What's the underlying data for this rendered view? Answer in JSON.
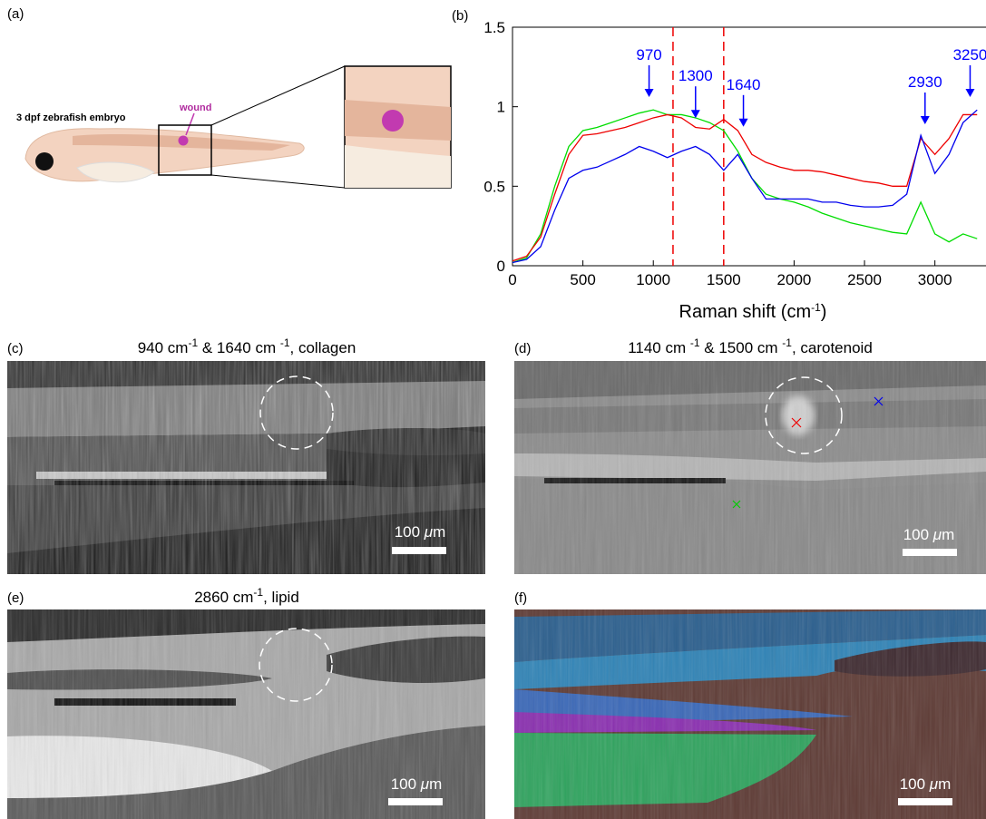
{
  "panels": {
    "a": {
      "label": "(a)",
      "embryo_label": "3 dpf zebrafish embryo",
      "wound_label": "wound"
    },
    "c": {
      "label": "(c)",
      "title": [
        "940 cm",
        "-1",
        " & 1640 cm ",
        "-1",
        ", collagen"
      ],
      "scale_bar": [
        "100 ",
        "μ",
        "m"
      ]
    },
    "d": {
      "label": "(d)",
      "title": [
        "1140 cm ",
        "-1",
        " & 1500 cm ",
        "-1",
        ", carotenoid"
      ],
      "scale_bar": [
        "100 ",
        "μ",
        "m"
      ]
    },
    "e": {
      "label": "(e)",
      "title": [
        "2860 cm",
        "-1",
        ", lipid"
      ],
      "scale_bar": [
        "100 ",
        "μ",
        "m"
      ]
    },
    "f": {
      "label": "(f)",
      "scale_bar": [
        "100 ",
        "μ",
        "m"
      ]
    }
  },
  "chart_data": {
    "type": "line",
    "panel_label": "(b)",
    "x_label": [
      "Raman shift (cm",
      "-1",
      ")"
    ],
    "x": [
      0,
      100,
      200,
      300,
      400,
      500,
      600,
      700,
      800,
      900,
      1000,
      1100,
      1200,
      1300,
      1400,
      1500,
      1600,
      1700,
      1800,
      1900,
      2000,
      2100,
      2200,
      2300,
      2400,
      2500,
      2600,
      2700,
      2800,
      2900,
      3000,
      3100,
      3200,
      3300
    ],
    "series": [
      {
        "color": "#00dd00",
        "values": [
          0.02,
          0.05,
          0.2,
          0.5,
          0.75,
          0.85,
          0.87,
          0.9,
          0.93,
          0.96,
          0.98,
          0.95,
          0.95,
          0.93,
          0.9,
          0.85,
          0.72,
          0.55,
          0.45,
          0.42,
          0.4,
          0.37,
          0.33,
          0.3,
          0.27,
          0.25,
          0.23,
          0.21,
          0.2,
          0.4,
          0.2,
          0.15,
          0.2,
          0.17
        ]
      },
      {
        "color": "#ee0000",
        "values": [
          0.03,
          0.06,
          0.18,
          0.45,
          0.7,
          0.82,
          0.83,
          0.85,
          0.87,
          0.9,
          0.93,
          0.95,
          0.93,
          0.87,
          0.86,
          0.92,
          0.85,
          0.7,
          0.65,
          0.62,
          0.6,
          0.6,
          0.59,
          0.57,
          0.55,
          0.53,
          0.52,
          0.5,
          0.5,
          0.8,
          0.7,
          0.8,
          0.95,
          0.95
        ]
      },
      {
        "color": "#0000ee",
        "values": [
          0.02,
          0.04,
          0.12,
          0.35,
          0.55,
          0.6,
          0.62,
          0.66,
          0.7,
          0.75,
          0.72,
          0.68,
          0.72,
          0.75,
          0.7,
          0.6,
          0.7,
          0.55,
          0.42,
          0.42,
          0.42,
          0.42,
          0.4,
          0.4,
          0.38,
          0.37,
          0.37,
          0.38,
          0.45,
          0.82,
          0.58,
          0.7,
          0.9,
          0.98
        ]
      }
    ],
    "xlim": [
      0,
      3350
    ],
    "xticks": [
      0,
      500,
      1000,
      1500,
      2000,
      2500,
      3000
    ],
    "ylim": [
      0,
      1.5
    ],
    "yticks": [
      0,
      0.5,
      1,
      1.5
    ],
    "annotations": [
      {
        "text": "970",
        "x": 970
      },
      {
        "text": "1300",
        "x": 1300
      },
      {
        "text": "1640",
        "x": 1640
      },
      {
        "text": "2930",
        "x": 2930
      },
      {
        "text": "3250",
        "x": 3250
      }
    ],
    "annotation_color": "#0000ff",
    "vlines": [
      1140,
      1500
    ],
    "vline_color": "#ee0000"
  }
}
